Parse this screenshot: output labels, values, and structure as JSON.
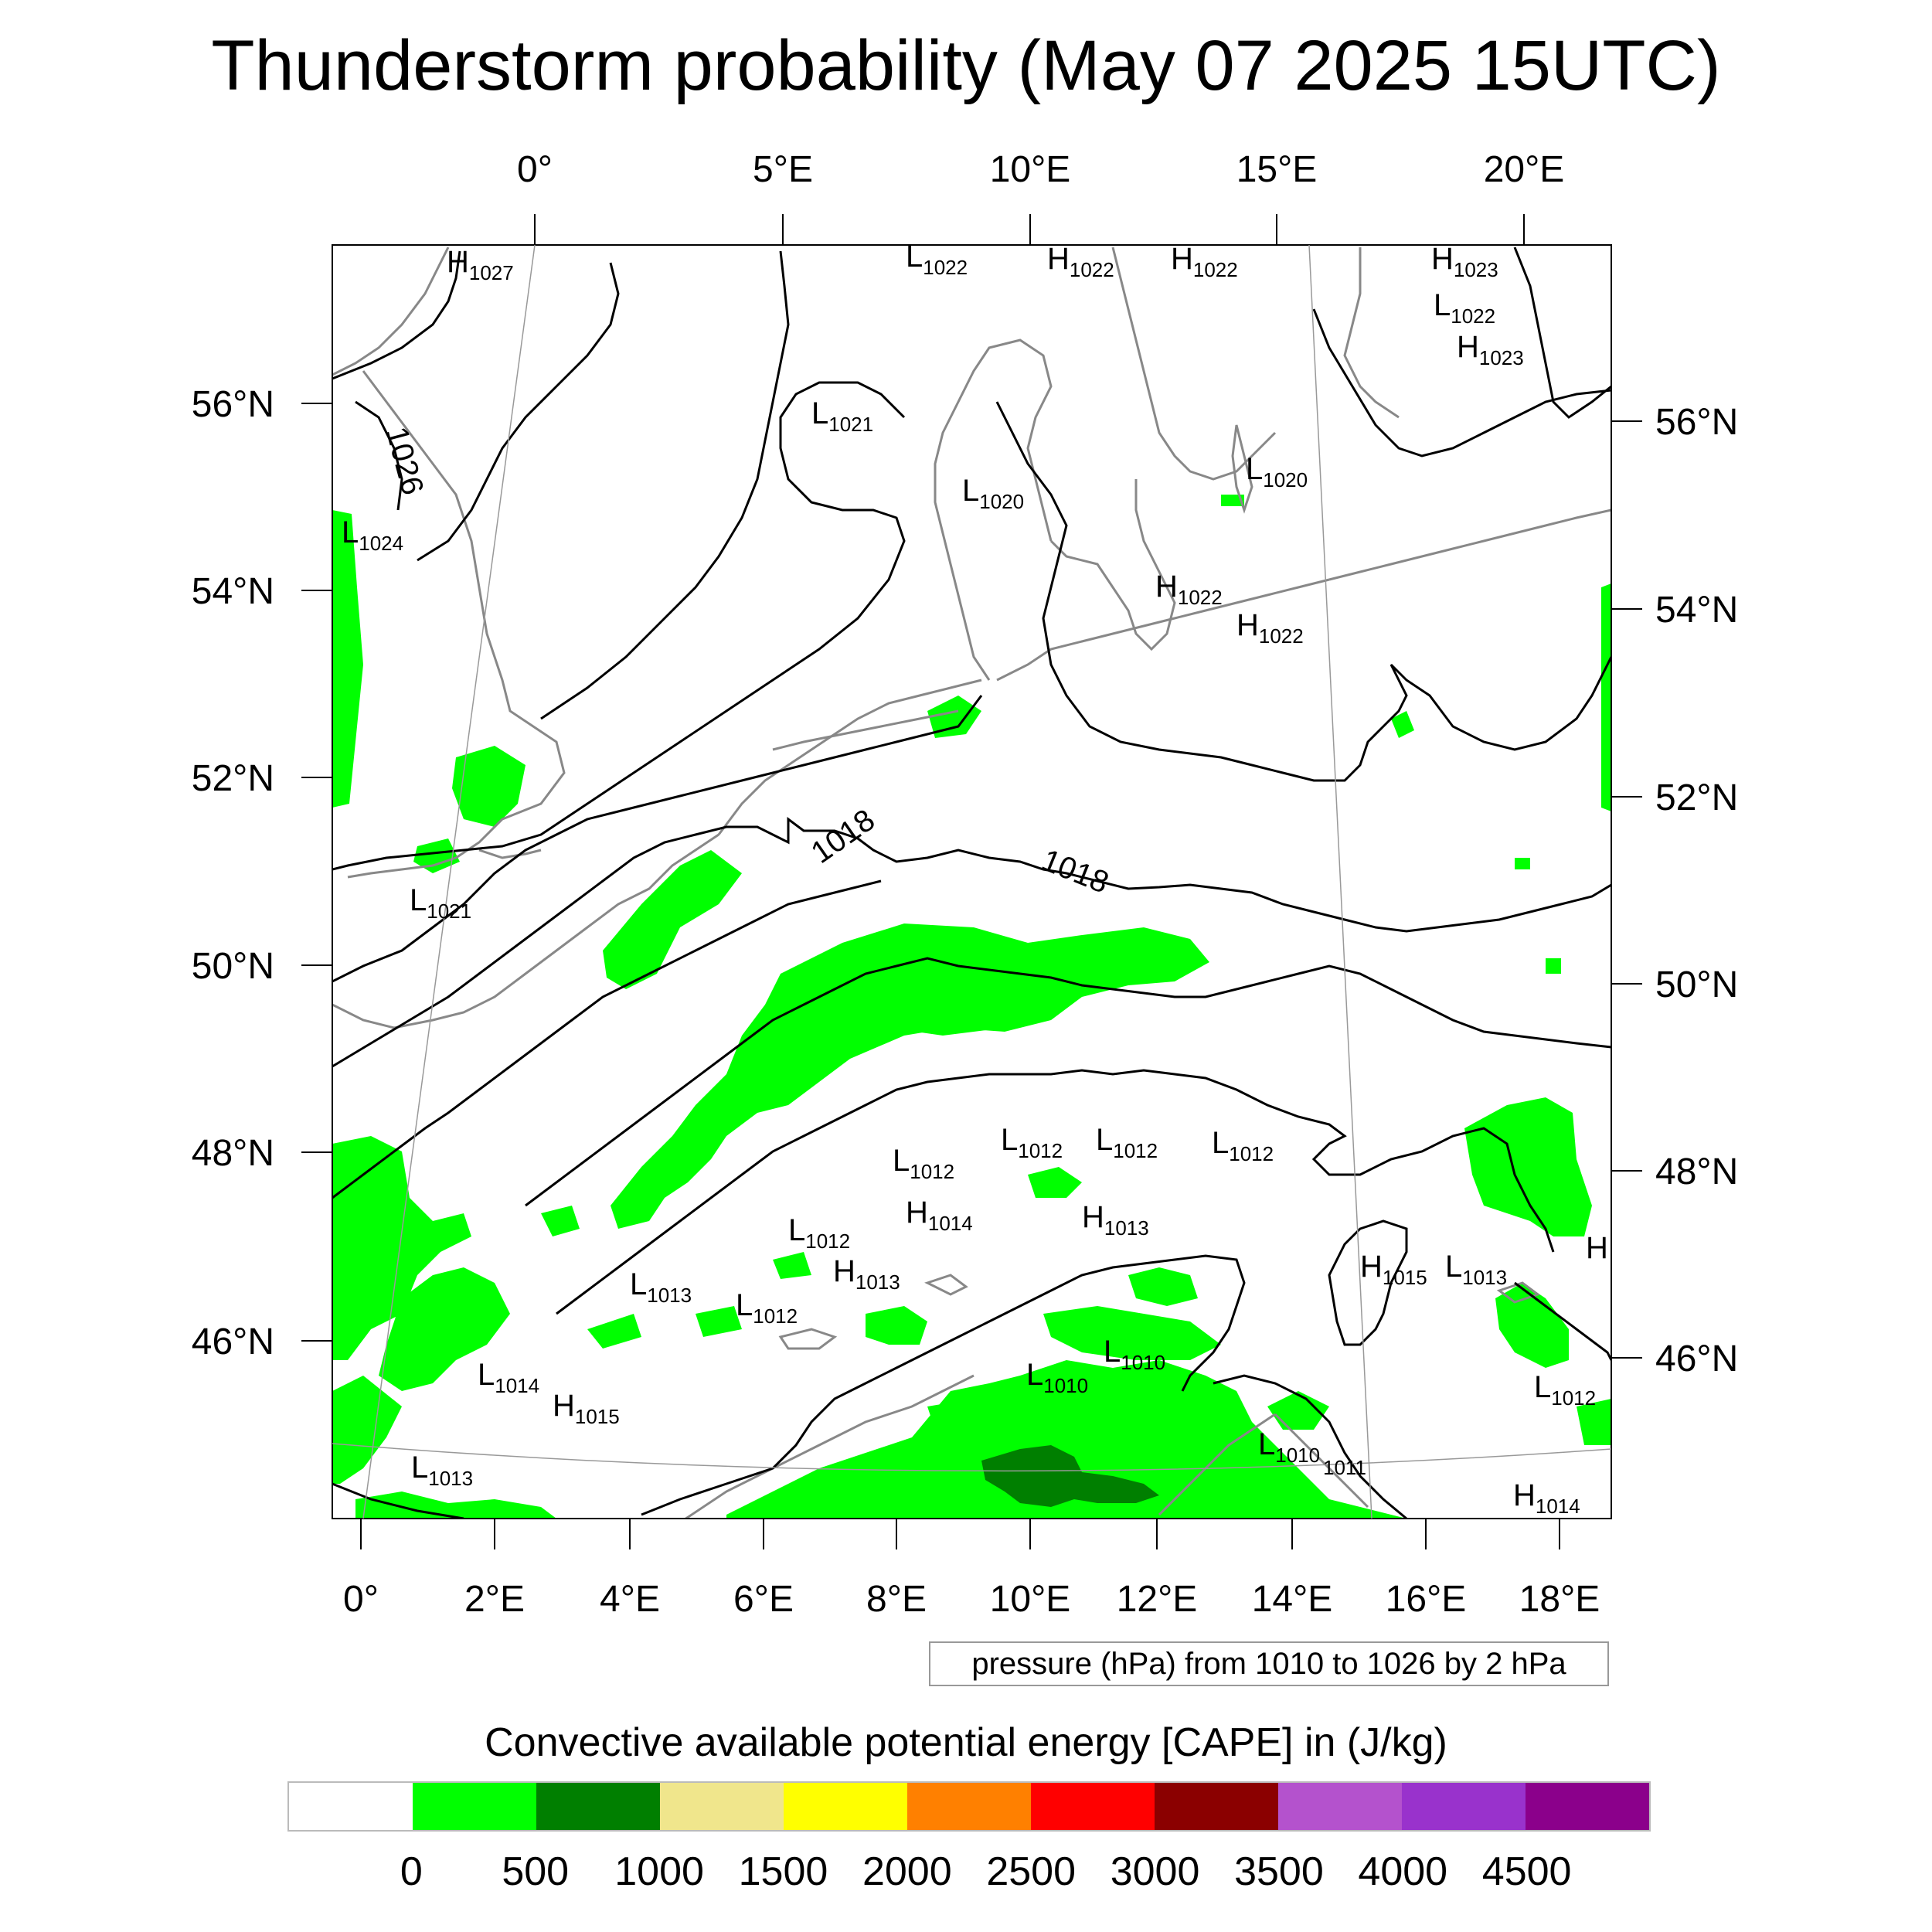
{
  "title": "Thunderstorm probability (May 07 2025 15UTC)",
  "top_lon_labels": [
    "0°",
    "5°E",
    "10°E",
    "15°E",
    "20°E"
  ],
  "bottom_lon_labels": [
    "0°",
    "2°E",
    "4°E",
    "6°E",
    "8°E",
    "10°E",
    "12°E",
    "14°E",
    "16°E",
    "18°E"
  ],
  "left_lat_labels": [
    "56°N",
    "54°N",
    "52°N",
    "50°N",
    "48°N",
    "46°N"
  ],
  "right_lat_labels": [
    "56°N",
    "54°N",
    "52°N",
    "50°N",
    "48°N",
    "46°N"
  ],
  "contour_labels": [
    "1026",
    "1018",
    "1018"
  ],
  "pressure_centers": [
    {
      "type": "H",
      "value": "1027"
    },
    {
      "type": "L",
      "value": "1022"
    },
    {
      "type": "H",
      "value": "1022"
    },
    {
      "type": "H",
      "value": "1022"
    },
    {
      "type": "H",
      "value": "1023"
    },
    {
      "type": "L",
      "value": "1022"
    },
    {
      "type": "H",
      "value": "1023"
    },
    {
      "type": "L",
      "value": "1021"
    },
    {
      "type": "L",
      "value": "1020"
    },
    {
      "type": "L",
      "value": "1020"
    },
    {
      "type": "L",
      "value": "1024"
    },
    {
      "type": "H",
      "value": "1022"
    },
    {
      "type": "H",
      "value": "1022"
    },
    {
      "type": "L",
      "value": "1021"
    },
    {
      "type": "L",
      "value": "1012"
    },
    {
      "type": "L",
      "value": "1012"
    },
    {
      "type": "L",
      "value": "1012"
    },
    {
      "type": "L",
      "value": "1012"
    },
    {
      "type": "H",
      "value": "1014"
    },
    {
      "type": "H",
      "value": "1013"
    },
    {
      "type": "L",
      "value": "1012"
    },
    {
      "type": "H",
      "value": "1013"
    },
    {
      "type": "L",
      "value": "1013"
    },
    {
      "type": "L",
      "value": "1012"
    },
    {
      "type": "H",
      "value": "1015"
    },
    {
      "type": "L",
      "value": "1013"
    },
    {
      "type": "L",
      "value": "1014"
    },
    {
      "type": "H",
      "value": "1015"
    },
    {
      "type": "L",
      "value": "1010"
    },
    {
      "type": "L",
      "value": "1010"
    },
    {
      "type": "L",
      "value": "1012"
    },
    {
      "type": "L",
      "value": "1010"
    },
    {
      "type": "L",
      "value": "1011"
    },
    {
      "type": "L",
      "value": "1013"
    },
    {
      "type": "H",
      "value": "1014"
    }
  ],
  "edge_marker": "H",
  "pressure_legend": "pressure (hPa) from 1010 to 1026 by 2 hPa",
  "colorbar": {
    "title": "Convective available potential energy [CAPE] in (J/kg)",
    "colors": [
      "#ffffff",
      "#00ff00",
      "#007f00",
      "#f0e68c",
      "#ffff00",
      "#ff8000",
      "#ff0000",
      "#8b0000",
      "#b452cd",
      "#9932cc",
      "#8b008b"
    ],
    "labels": [
      "0",
      "500",
      "1000",
      "1500",
      "2000",
      "2500",
      "3000",
      "3500",
      "4000",
      "4500"
    ]
  },
  "colors": {
    "cape_0_500": "#00ff00",
    "cape_500_1000": "#007f00",
    "coast": "#888888",
    "isobar": "#000000"
  }
}
